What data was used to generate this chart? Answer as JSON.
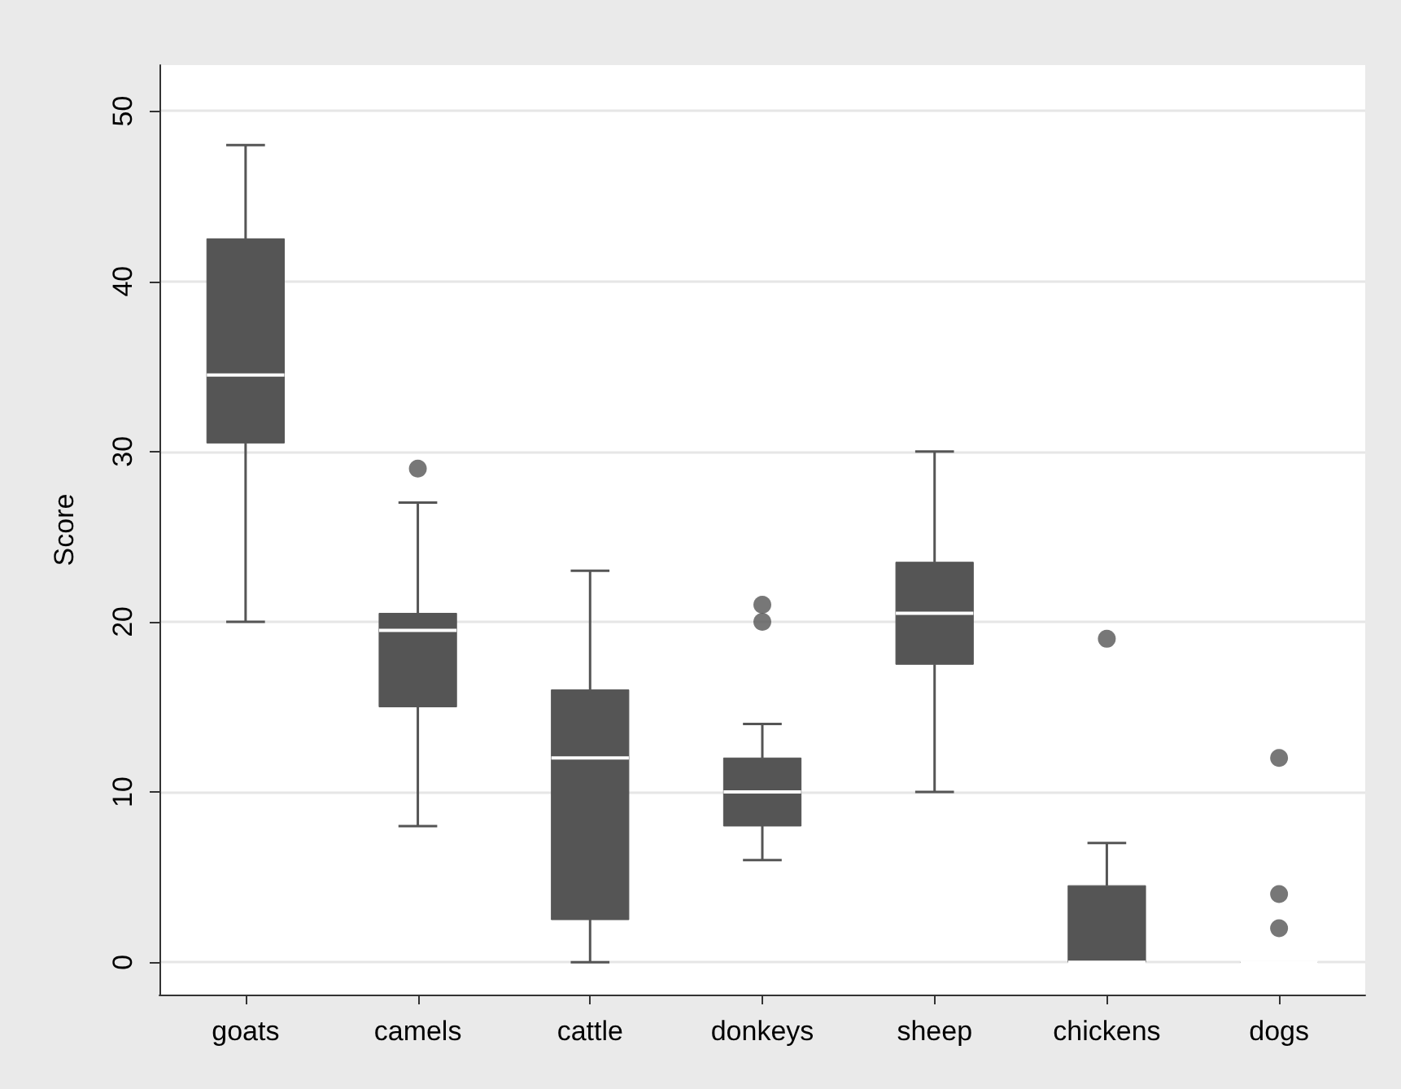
{
  "chart_data": {
    "type": "box",
    "ylabel": "Score",
    "categories": [
      "goats",
      "camels",
      "cattle",
      "donkeys",
      "sheep",
      "chickens",
      "dogs"
    ],
    "series": [
      {
        "color": "#555555",
        "boxes": [
          {
            "low": 20,
            "q1": 30.5,
            "median": 34.5,
            "q3": 42.5,
            "high": 48
          },
          {
            "low": 8,
            "q1": 15,
            "median": 19.5,
            "q3": 20.5,
            "high": 27,
            "outliers": [
              29
            ]
          },
          {
            "low": 0,
            "q1": 2.5,
            "median": 12,
            "q3": 16,
            "high": 23
          },
          {
            "low": 6,
            "q1": 8,
            "median": 10,
            "q3": 12,
            "high": 14,
            "outliers": [
              20,
              21
            ]
          },
          {
            "low": 10,
            "q1": 17.5,
            "median": 20.5,
            "q3": 23.5,
            "high": 30
          },
          {
            "low": 0,
            "q1": 0,
            "median": 0,
            "q3": 4.5,
            "high": 7,
            "outliers": [
              19
            ]
          },
          {
            "low": 0,
            "q1": 0,
            "median": 0,
            "q3": 0,
            "high": 0,
            "outliers": [
              2,
              4,
              12
            ]
          }
        ]
      }
    ],
    "ylim": [
      -1.9,
      52.7
    ],
    "yticks": [
      0,
      10,
      20,
      30,
      40,
      50
    ],
    "grid": "y",
    "marker": "circle"
  }
}
